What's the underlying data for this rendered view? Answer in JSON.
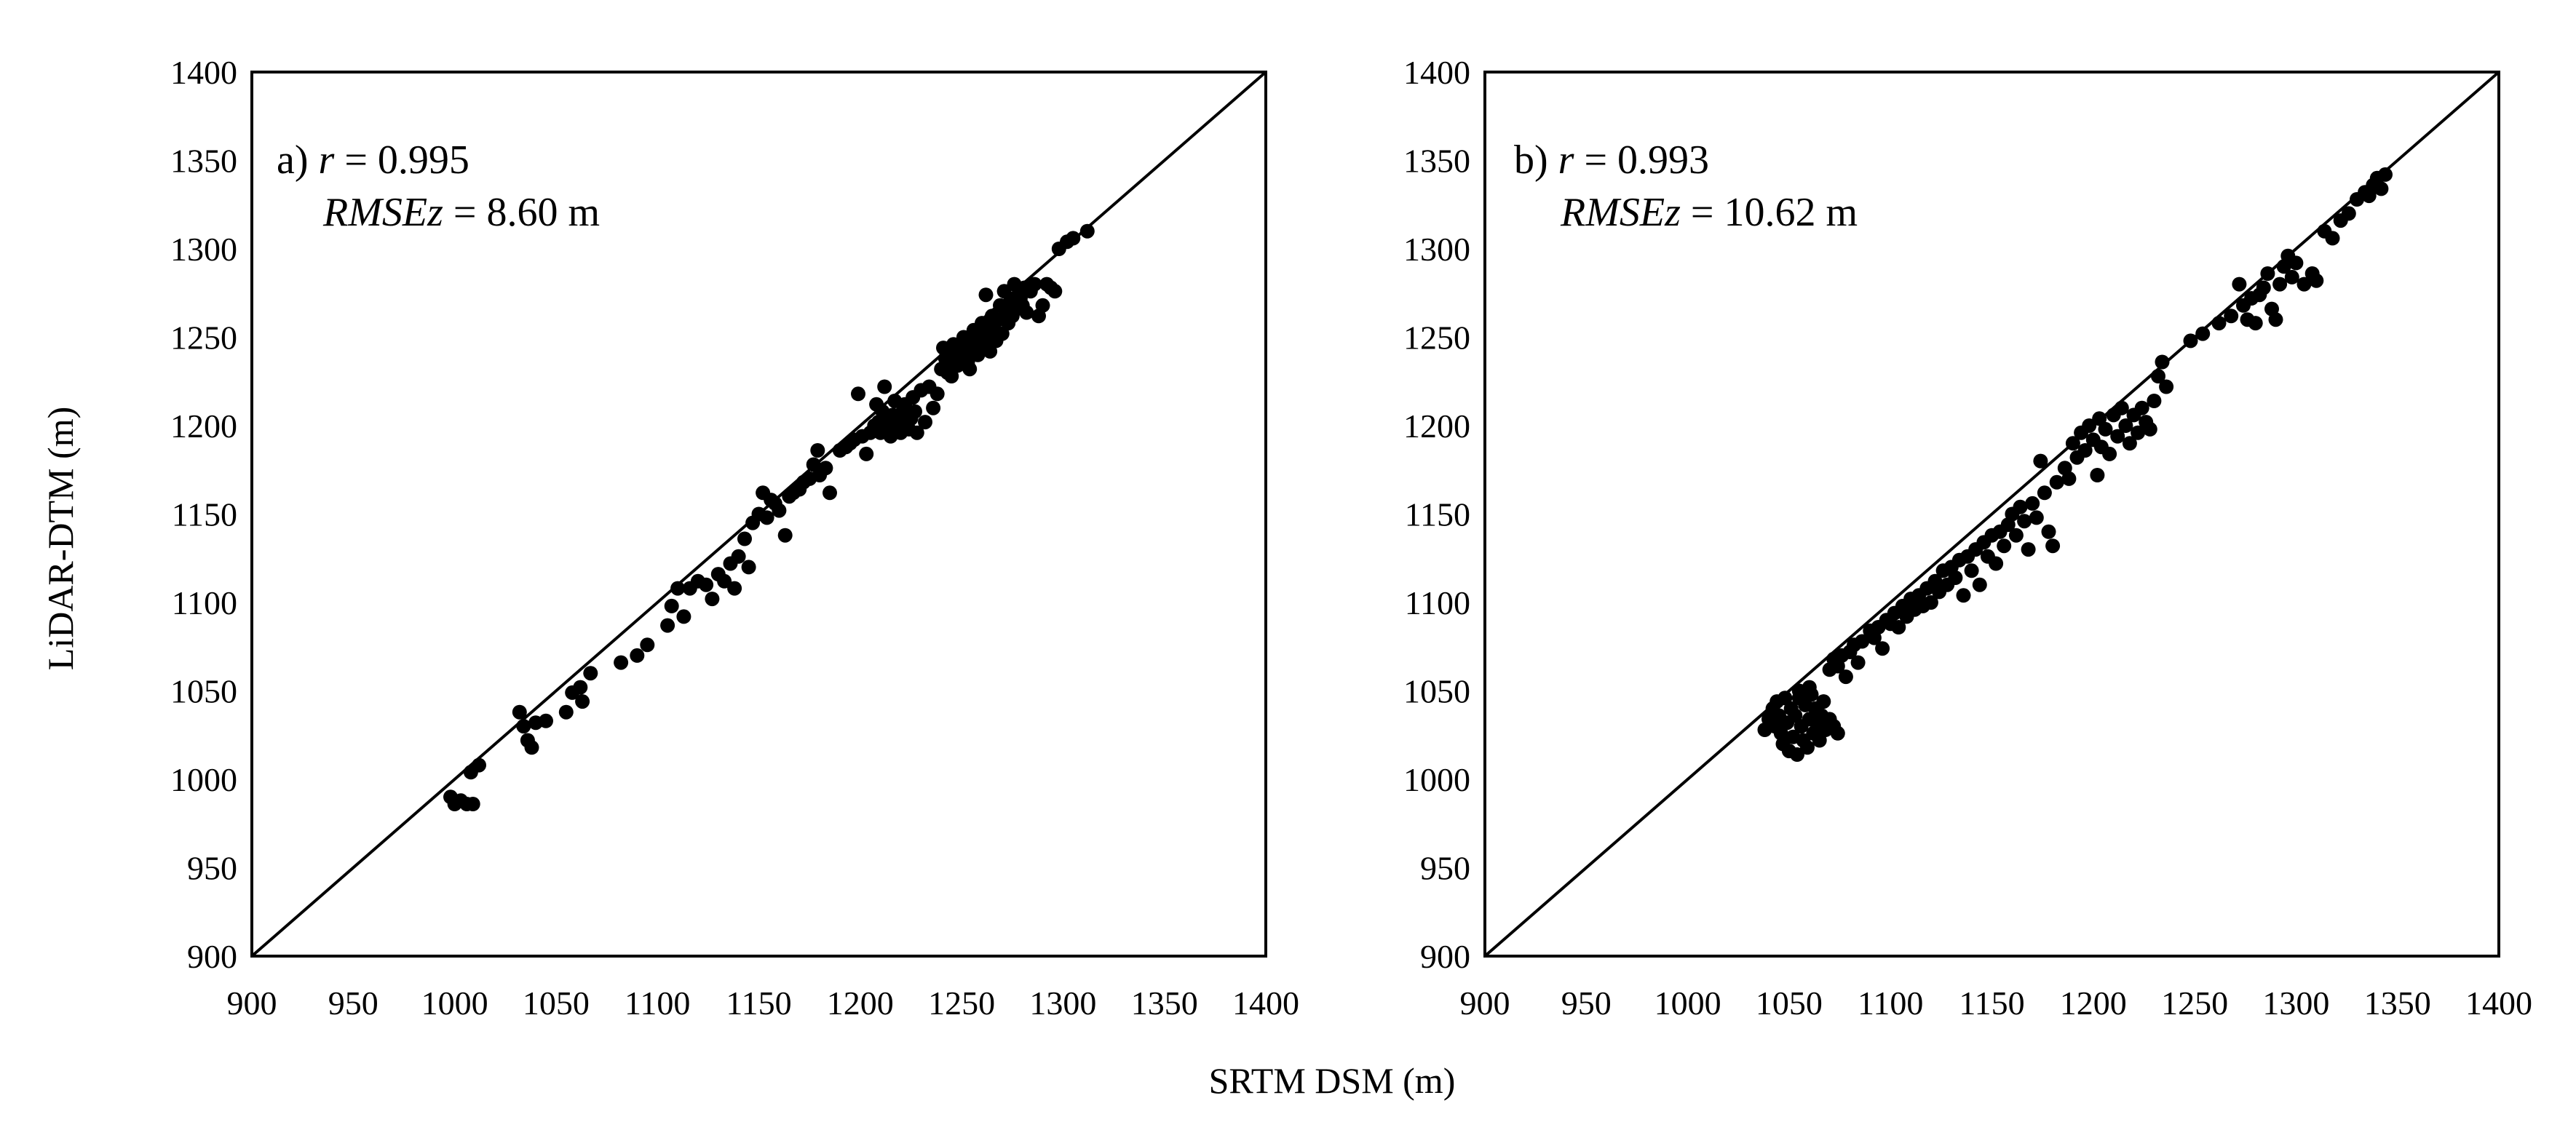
{
  "chart_data": [
    {
      "type": "scatter",
      "panel_label": "a)",
      "stats": {
        "r_symbol": "r",
        "r_value": "= 0.995",
        "rmse_symbol": "RMSEz",
        "rmse_value": "= 8.60 m"
      },
      "xlim": [
        900,
        1400
      ],
      "ylim": [
        900,
        1400
      ],
      "xticks": [
        "900",
        "950",
        "1000",
        "1050",
        "1100",
        "1150",
        "1200",
        "1250",
        "1300",
        "1350",
        "1400"
      ],
      "yticks": [
        "900",
        "950",
        "1000",
        "1050",
        "1100",
        "1150",
        "1200",
        "1250",
        "1300",
        "1350",
        "1400"
      ],
      "reference_line": "1:1",
      "grid": false,
      "points": [
        [
          998,
          990
        ],
        [
          1000,
          986
        ],
        [
          1003,
          988
        ],
        [
          1006,
          986
        ],
        [
          1009,
          986
        ],
        [
          1008,
          1004
        ],
        [
          1012,
          1008
        ],
        [
          1032,
          1038
        ],
        [
          1034,
          1030
        ],
        [
          1036,
          1022
        ],
        [
          1038,
          1018
        ],
        [
          1040,
          1032
        ],
        [
          1045,
          1033
        ],
        [
          1055,
          1038
        ],
        [
          1058,
          1049
        ],
        [
          1062,
          1052
        ],
        [
          1063,
          1044
        ],
        [
          1067,
          1060
        ],
        [
          1082,
          1066
        ],
        [
          1090,
          1070
        ],
        [
          1095,
          1076
        ],
        [
          1105,
          1087
        ],
        [
          1107,
          1098
        ],
        [
          1110,
          1108
        ],
        [
          1113,
          1092
        ],
        [
          1116,
          1108
        ],
        [
          1120,
          1112
        ],
        [
          1124,
          1110
        ],
        [
          1127,
          1102
        ],
        [
          1130,
          1116
        ],
        [
          1133,
          1112
        ],
        [
          1136,
          1122
        ],
        [
          1138,
          1108
        ],
        [
          1140,
          1126
        ],
        [
          1143,
          1136
        ],
        [
          1145,
          1120
        ],
        [
          1147,
          1145
        ],
        [
          1150,
          1150
        ],
        [
          1152,
          1162
        ],
        [
          1154,
          1148
        ],
        [
          1156,
          1158
        ],
        [
          1158,
          1156
        ],
        [
          1160,
          1152
        ],
        [
          1163,
          1138
        ],
        [
          1165,
          1160
        ],
        [
          1167,
          1162
        ],
        [
          1170,
          1164
        ],
        [
          1172,
          1168
        ],
        [
          1175,
          1170
        ],
        [
          1177,
          1178
        ],
        [
          1179,
          1186
        ],
        [
          1180,
          1172
        ],
        [
          1183,
          1176
        ],
        [
          1185,
          1162
        ],
        [
          1190,
          1186
        ],
        [
          1193,
          1188
        ],
        [
          1195,
          1190
        ],
        [
          1197,
          1192
        ],
        [
          1199,
          1218
        ],
        [
          1201,
          1194
        ],
        [
          1203,
          1184
        ],
        [
          1205,
          1196
        ],
        [
          1207,
          1200
        ],
        [
          1208,
          1212
        ],
        [
          1209,
          1202
        ],
        [
          1210,
          1196
        ],
        [
          1211,
          1208
        ],
        [
          1212,
          1222
        ],
        [
          1213,
          1204
        ],
        [
          1214,
          1200
        ],
        [
          1215,
          1194
        ],
        [
          1216,
          1206
        ],
        [
          1217,
          1214
        ],
        [
          1218,
          1198
        ],
        [
          1219,
          1202
        ],
        [
          1220,
          1196
        ],
        [
          1221,
          1208
        ],
        [
          1222,
          1212
        ],
        [
          1223,
          1200
        ],
        [
          1224,
          1198
        ],
        [
          1225,
          1204
        ],
        [
          1226,
          1216
        ],
        [
          1227,
          1208
        ],
        [
          1228,
          1196
        ],
        [
          1230,
          1220
        ],
        [
          1232,
          1202
        ],
        [
          1234,
          1222
        ],
        [
          1236,
          1210
        ],
        [
          1238,
          1218
        ],
        [
          1240,
          1232
        ],
        [
          1241,
          1244
        ],
        [
          1242,
          1238
        ],
        [
          1243,
          1230
        ],
        [
          1244,
          1236
        ],
        [
          1245,
          1228
        ],
        [
          1246,
          1246
        ],
        [
          1247,
          1240
        ],
        [
          1248,
          1234
        ],
        [
          1249,
          1244
        ],
        [
          1250,
          1238
        ],
        [
          1251,
          1250
        ],
        [
          1252,
          1242
        ],
        [
          1253,
          1236
        ],
        [
          1254,
          1232
        ],
        [
          1255,
          1248
        ],
        [
          1256,
          1254
        ],
        [
          1257,
          1244
        ],
        [
          1258,
          1240
        ],
        [
          1259,
          1250
        ],
        [
          1260,
          1258
        ],
        [
          1261,
          1246
        ],
        [
          1262,
          1274
        ],
        [
          1263,
          1252
        ],
        [
          1264,
          1242
        ],
        [
          1265,
          1262
        ],
        [
          1266,
          1256
        ],
        [
          1267,
          1248
        ],
        [
          1268,
          1260
        ],
        [
          1269,
          1268
        ],
        [
          1270,
          1252
        ],
        [
          1271,
          1276
        ],
        [
          1272,
          1264
        ],
        [
          1273,
          1258
        ],
        [
          1274,
          1270
        ],
        [
          1275,
          1262
        ],
        [
          1276,
          1280
        ],
        [
          1277,
          1266
        ],
        [
          1278,
          1274
        ],
        [
          1279,
          1272
        ],
        [
          1280,
          1268
        ],
        [
          1281,
          1278
        ],
        [
          1282,
          1264
        ],
        [
          1284,
          1276
        ],
        [
          1286,
          1280
        ],
        [
          1288,
          1262
        ],
        [
          1290,
          1268
        ],
        [
          1292,
          1280
        ],
        [
          1294,
          1278
        ],
        [
          1296,
          1276
        ],
        [
          1298,
          1300
        ],
        [
          1302,
          1304
        ],
        [
          1305,
          1306
        ],
        [
          1312,
          1310
        ]
      ]
    },
    {
      "type": "scatter",
      "panel_label": "b)",
      "stats": {
        "r_symbol": "r",
        "r_value": "= 0.993",
        "rmse_symbol": "RMSEz",
        "rmse_value": "= 10.62 m"
      },
      "xlim": [
        900,
        1400
      ],
      "ylim": [
        900,
        1400
      ],
      "xticks": [
        "900",
        "950",
        "1000",
        "1050",
        "1100",
        "1150",
        "1200",
        "1250",
        "1300",
        "1350",
        "1400"
      ],
      "yticks": [
        "900",
        "950",
        "1000",
        "1050",
        "1100",
        "1150",
        "1200",
        "1250",
        "1300",
        "1350",
        "1400"
      ],
      "reference_line": "1:1",
      "grid": false,
      "points": [
        [
          1038,
          1028
        ],
        [
          1040,
          1034
        ],
        [
          1042,
          1040
        ],
        [
          1043,
          1030
        ],
        [
          1044,
          1044
        ],
        [
          1045,
          1036
        ],
        [
          1046,
          1026
        ],
        [
          1047,
          1020
        ],
        [
          1048,
          1046
        ],
        [
          1049,
          1032
        ],
        [
          1050,
          1016
        ],
        [
          1051,
          1040
        ],
        [
          1052,
          1024
        ],
        [
          1053,
          1036
        ],
        [
          1054,
          1014
        ],
        [
          1055,
          1046
        ],
        [
          1056,
          1030
        ],
        [
          1057,
          1022
        ],
        [
          1058,
          1042
        ],
        [
          1059,
          1018
        ],
        [
          1060,
          1034
        ],
        [
          1061,
          1048
        ],
        [
          1062,
          1026
        ],
        [
          1063,
          1040
        ],
        [
          1064,
          1030
        ],
        [
          1065,
          1022
        ],
        [
          1066,
          1036
        ],
        [
          1067,
          1044
        ],
        [
          1068,
          1028
        ],
        [
          1070,
          1034
        ],
        [
          1072,
          1030
        ],
        [
          1074,
          1026
        ],
        [
          1055,
          1050
        ],
        [
          1060,
          1052
        ],
        [
          1070,
          1062
        ],
        [
          1072,
          1068
        ],
        [
          1074,
          1064
        ],
        [
          1076,
          1070
        ],
        [
          1078,
          1058
        ],
        [
          1080,
          1072
        ],
        [
          1082,
          1076
        ],
        [
          1084,
          1066
        ],
        [
          1086,
          1078
        ],
        [
          1090,
          1084
        ],
        [
          1092,
          1080
        ],
        [
          1094,
          1086
        ],
        [
          1096,
          1074
        ],
        [
          1098,
          1090
        ],
        [
          1100,
          1088
        ],
        [
          1102,
          1094
        ],
        [
          1104,
          1086
        ],
        [
          1106,
          1098
        ],
        [
          1108,
          1092
        ],
        [
          1110,
          1102
        ],
        [
          1112,
          1096
        ],
        [
          1114,
          1104
        ],
        [
          1116,
          1098
        ],
        [
          1118,
          1108
        ],
        [
          1120,
          1100
        ],
        [
          1122,
          1112
        ],
        [
          1124,
          1106
        ],
        [
          1126,
          1118
        ],
        [
          1128,
          1110
        ],
        [
          1130,
          1120
        ],
        [
          1132,
          1114
        ],
        [
          1134,
          1124
        ],
        [
          1136,
          1104
        ],
        [
          1138,
          1126
        ],
        [
          1140,
          1118
        ],
        [
          1142,
          1130
        ],
        [
          1144,
          1110
        ],
        [
          1146,
          1134
        ],
        [
          1148,
          1126
        ],
        [
          1150,
          1138
        ],
        [
          1152,
          1122
        ],
        [
          1154,
          1140
        ],
        [
          1156,
          1132
        ],
        [
          1158,
          1144
        ],
        [
          1160,
          1150
        ],
        [
          1162,
          1138
        ],
        [
          1164,
          1154
        ],
        [
          1166,
          1146
        ],
        [
          1168,
          1130
        ],
        [
          1170,
          1156
        ],
        [
          1172,
          1148
        ],
        [
          1174,
          1180
        ],
        [
          1176,
          1162
        ],
        [
          1178,
          1140
        ],
        [
          1180,
          1132
        ],
        [
          1182,
          1168
        ],
        [
          1186,
          1176
        ],
        [
          1188,
          1170
        ],
        [
          1190,
          1190
        ],
        [
          1192,
          1182
        ],
        [
          1194,
          1196
        ],
        [
          1196,
          1186
        ],
        [
          1198,
          1200
        ],
        [
          1200,
          1192
        ],
        [
          1202,
          1172
        ],
        [
          1203,
          1204
        ],
        [
          1204,
          1188
        ],
        [
          1206,
          1198
        ],
        [
          1208,
          1184
        ],
        [
          1210,
          1206
        ],
        [
          1212,
          1194
        ],
        [
          1214,
          1210
        ],
        [
          1216,
          1200
        ],
        [
          1218,
          1190
        ],
        [
          1220,
          1206
        ],
        [
          1222,
          1196
        ],
        [
          1224,
          1210
        ],
        [
          1226,
          1202
        ],
        [
          1228,
          1198
        ],
        [
          1230,
          1214
        ],
        [
          1232,
          1228
        ],
        [
          1234,
          1236
        ],
        [
          1236,
          1222
        ],
        [
          1248,
          1248
        ],
        [
          1254,
          1252
        ],
        [
          1262,
          1258
        ],
        [
          1268,
          1262
        ],
        [
          1272,
          1280
        ],
        [
          1274,
          1268
        ],
        [
          1276,
          1260
        ],
        [
          1278,
          1272
        ],
        [
          1280,
          1258
        ],
        [
          1282,
          1274
        ],
        [
          1284,
          1278
        ],
        [
          1286,
          1286
        ],
        [
          1288,
          1266
        ],
        [
          1290,
          1260
        ],
        [
          1292,
          1280
        ],
        [
          1294,
          1290
        ],
        [
          1296,
          1296
        ],
        [
          1298,
          1284
        ],
        [
          1300,
          1292
        ],
        [
          1304,
          1280
        ],
        [
          1308,
          1286
        ],
        [
          1310,
          1282
        ],
        [
          1314,
          1310
        ],
        [
          1318,
          1306
        ],
        [
          1322,
          1316
        ],
        [
          1326,
          1320
        ],
        [
          1330,
          1328
        ],
        [
          1334,
          1332
        ],
        [
          1336,
          1330
        ],
        [
          1338,
          1336
        ],
        [
          1340,
          1340
        ],
        [
          1342,
          1334
        ],
        [
          1344,
          1342
        ]
      ]
    }
  ],
  "shared_axes": {
    "xlabel": "SRTM DSM (m)",
    "ylabel": "LiDAR-DTM (m)"
  }
}
